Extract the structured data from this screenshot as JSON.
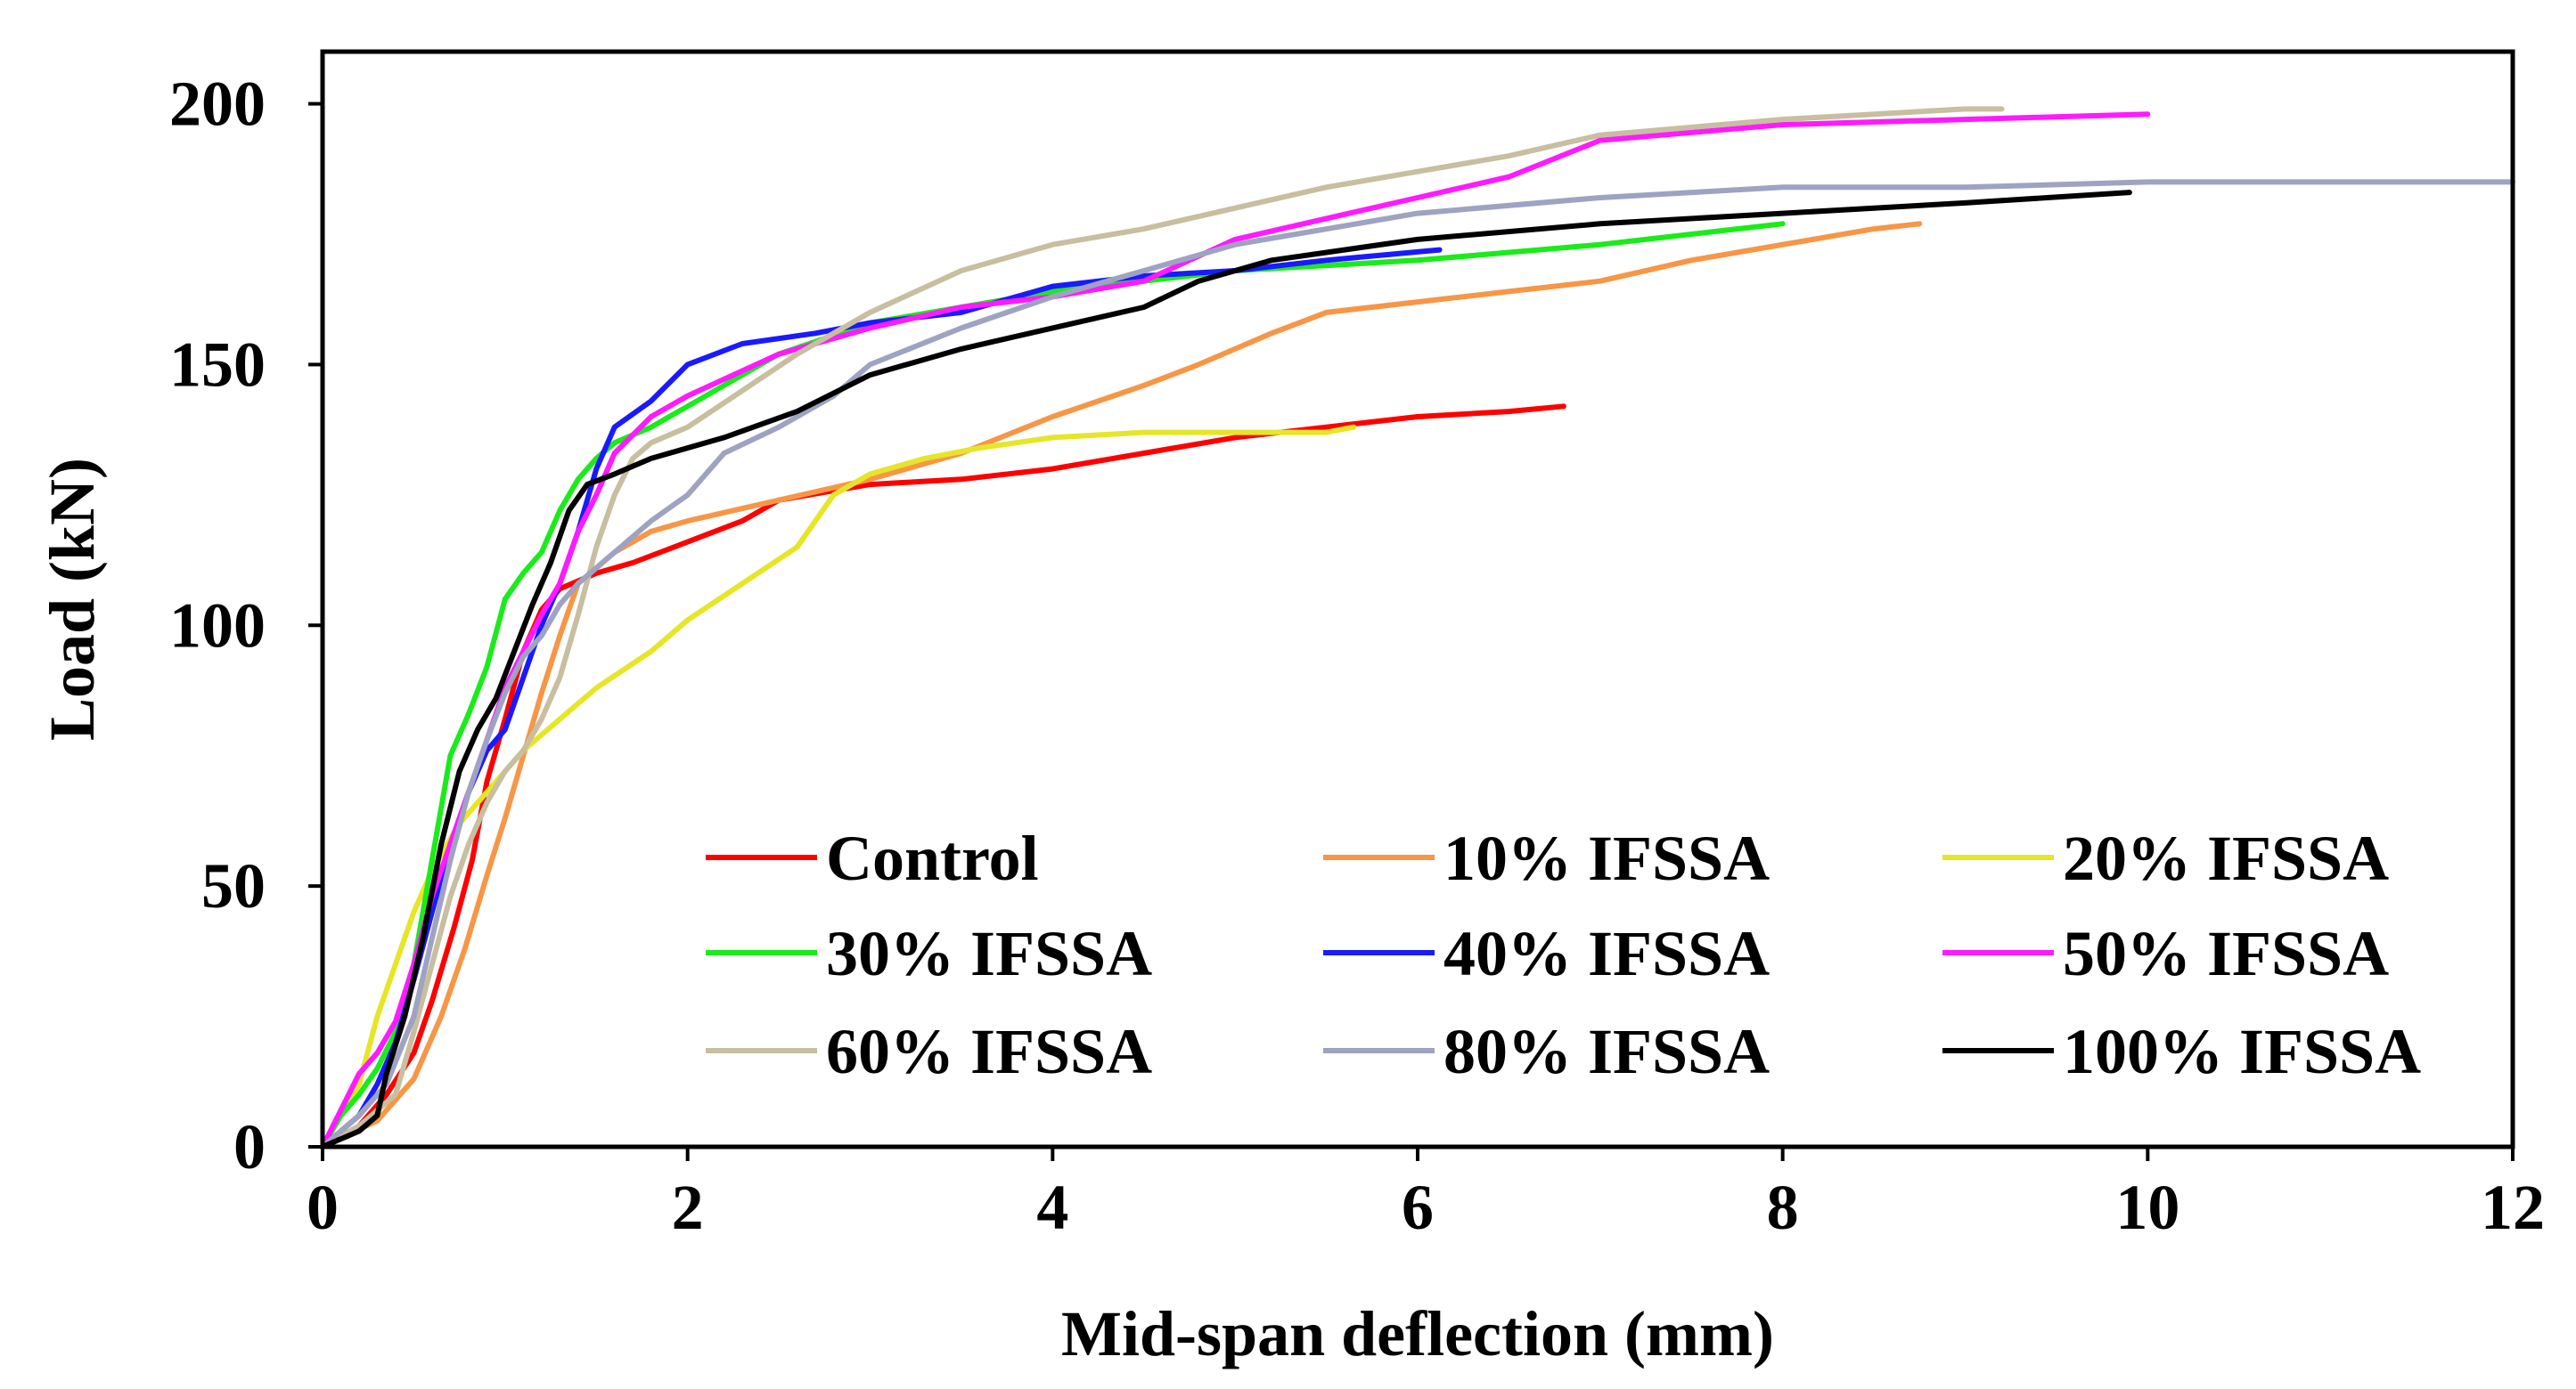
{
  "chart_data": {
    "type": "line",
    "title": "",
    "xlabel": "Mid-span deflection (mm)",
    "ylabel": "Load (kN)",
    "xlim": [
      0,
      12
    ],
    "ylim": [
      0,
      210
    ],
    "xticks": [
      0,
      2,
      4,
      6,
      8,
      10,
      12
    ],
    "yticks": [
      0,
      50,
      100,
      150,
      200
    ],
    "legend_position": "bottom-right-inside",
    "series": [
      {
        "name": "Control",
        "color": "#ff0000",
        "points": [
          [
            0,
            0
          ],
          [
            0.2,
            4
          ],
          [
            0.35,
            10
          ],
          [
            0.5,
            18
          ],
          [
            0.6,
            28
          ],
          [
            0.72,
            42
          ],
          [
            0.82,
            55
          ],
          [
            0.9,
            70
          ],
          [
            1.0,
            82
          ],
          [
            1.1,
            95
          ],
          [
            1.2,
            103
          ],
          [
            1.3,
            107
          ],
          [
            1.5,
            110
          ],
          [
            1.7,
            112
          ],
          [
            2.0,
            116
          ],
          [
            2.3,
            120
          ],
          [
            2.5,
            124
          ],
          [
            3.0,
            127
          ],
          [
            3.5,
            128
          ],
          [
            4.0,
            130
          ],
          [
            4.5,
            133
          ],
          [
            5.0,
            136
          ],
          [
            5.5,
            138
          ],
          [
            6.0,
            140
          ],
          [
            6.5,
            141
          ],
          [
            6.8,
            142
          ]
        ]
      },
      {
        "name": "10% IFSSA",
        "color": "#f79646",
        "points": [
          [
            0,
            0
          ],
          [
            0.3,
            5
          ],
          [
            0.5,
            13
          ],
          [
            0.65,
            25
          ],
          [
            0.78,
            38
          ],
          [
            0.9,
            52
          ],
          [
            1.0,
            63
          ],
          [
            1.1,
            75
          ],
          [
            1.2,
            87
          ],
          [
            1.3,
            98
          ],
          [
            1.4,
            108
          ],
          [
            1.6,
            114
          ],
          [
            1.8,
            118
          ],
          [
            2.0,
            120
          ],
          [
            2.5,
            124
          ],
          [
            3.0,
            128
          ],
          [
            3.5,
            133
          ],
          [
            4.0,
            140
          ],
          [
            4.5,
            146
          ],
          [
            4.8,
            150
          ],
          [
            5.2,
            156
          ],
          [
            5.5,
            160
          ],
          [
            6.0,
            162
          ],
          [
            6.5,
            164
          ],
          [
            7.0,
            166
          ],
          [
            7.5,
            170
          ],
          [
            8.0,
            173
          ],
          [
            8.5,
            176
          ],
          [
            8.75,
            177
          ]
        ]
      },
      {
        "name": "20% IFSSA",
        "color": "#e6e628",
        "points": [
          [
            0,
            0
          ],
          [
            0.2,
            12
          ],
          [
            0.3,
            25
          ],
          [
            0.4,
            35
          ],
          [
            0.5,
            45
          ],
          [
            0.6,
            53
          ],
          [
            0.75,
            62
          ],
          [
            0.9,
            68
          ],
          [
            1.1,
            76
          ],
          [
            1.3,
            82
          ],
          [
            1.5,
            88
          ],
          [
            1.8,
            95
          ],
          [
            2.0,
            101
          ],
          [
            2.3,
            108
          ],
          [
            2.6,
            115
          ],
          [
            2.8,
            125
          ],
          [
            3.0,
            129
          ],
          [
            3.3,
            132
          ],
          [
            3.6,
            134
          ],
          [
            4.0,
            136
          ],
          [
            4.5,
            137
          ],
          [
            5.0,
            137
          ],
          [
            5.5,
            137
          ],
          [
            5.65,
            138
          ]
        ]
      },
      {
        "name": "30% IFSSA",
        "color": "#1aeb1a",
        "points": [
          [
            0,
            0
          ],
          [
            0.1,
            6
          ],
          [
            0.2,
            10
          ],
          [
            0.3,
            15
          ],
          [
            0.4,
            22
          ],
          [
            0.5,
            35
          ],
          [
            0.6,
            55
          ],
          [
            0.7,
            75
          ],
          [
            0.8,
            83
          ],
          [
            0.9,
            92
          ],
          [
            1.0,
            105
          ],
          [
            1.1,
            110
          ],
          [
            1.2,
            114
          ],
          [
            1.3,
            122
          ],
          [
            1.4,
            128
          ],
          [
            1.5,
            132
          ],
          [
            1.6,
            135
          ],
          [
            1.8,
            138
          ],
          [
            2.0,
            142
          ],
          [
            2.5,
            152
          ],
          [
            3.0,
            158
          ],
          [
            3.5,
            161
          ],
          [
            4.0,
            164
          ],
          [
            5.0,
            168
          ],
          [
            6.0,
            170
          ],
          [
            7.0,
            173
          ],
          [
            8.0,
            177
          ]
        ]
      },
      {
        "name": "40% IFSSA",
        "color": "#1a1aff",
        "points": [
          [
            0,
            0
          ],
          [
            0.2,
            6
          ],
          [
            0.3,
            12
          ],
          [
            0.4,
            20
          ],
          [
            0.5,
            32
          ],
          [
            0.6,
            45
          ],
          [
            0.7,
            58
          ],
          [
            0.8,
            68
          ],
          [
            0.9,
            76
          ],
          [
            1.0,
            80
          ],
          [
            1.1,
            90
          ],
          [
            1.2,
            100
          ],
          [
            1.3,
            108
          ],
          [
            1.4,
            118
          ],
          [
            1.5,
            130
          ],
          [
            1.6,
            138
          ],
          [
            1.8,
            143
          ],
          [
            2.0,
            150
          ],
          [
            2.3,
            154
          ],
          [
            2.7,
            156
          ],
          [
            3.0,
            158
          ],
          [
            3.5,
            160
          ],
          [
            4.0,
            165
          ],
          [
            4.5,
            167
          ],
          [
            5.0,
            168
          ],
          [
            5.5,
            170
          ],
          [
            6.12,
            172
          ]
        ]
      },
      {
        "name": "50% IFSSA",
        "color": "#ff1aff",
        "points": [
          [
            0,
            0
          ],
          [
            0.2,
            14
          ],
          [
            0.3,
            18
          ],
          [
            0.4,
            24
          ],
          [
            0.5,
            35
          ],
          [
            0.6,
            48
          ],
          [
            0.7,
            58
          ],
          [
            0.8,
            68
          ],
          [
            0.9,
            78
          ],
          [
            1.0,
            88
          ],
          [
            1.1,
            95
          ],
          [
            1.2,
            102
          ],
          [
            1.3,
            108
          ],
          [
            1.4,
            118
          ],
          [
            1.5,
            125
          ],
          [
            1.6,
            133
          ],
          [
            1.8,
            140
          ],
          [
            2.0,
            144
          ],
          [
            2.5,
            152
          ],
          [
            3.0,
            157
          ],
          [
            3.5,
            161
          ],
          [
            4.0,
            163
          ],
          [
            4.5,
            166
          ],
          [
            5.0,
            174
          ],
          [
            5.5,
            178
          ],
          [
            6.0,
            182
          ],
          [
            6.5,
            186
          ],
          [
            7.0,
            193
          ],
          [
            8.0,
            196
          ],
          [
            9.0,
            197
          ],
          [
            10.0,
            198
          ]
        ]
      },
      {
        "name": "60% IFSSA",
        "color": "#c8bea0",
        "points": [
          [
            0,
            0
          ],
          [
            0.2,
            4
          ],
          [
            0.4,
            10
          ],
          [
            0.5,
            22
          ],
          [
            0.6,
            35
          ],
          [
            0.7,
            48
          ],
          [
            0.8,
            58
          ],
          [
            0.9,
            66
          ],
          [
            1.0,
            72
          ],
          [
            1.1,
            76
          ],
          [
            1.2,
            82
          ],
          [
            1.3,
            90
          ],
          [
            1.4,
            102
          ],
          [
            1.5,
            115
          ],
          [
            1.6,
            125
          ],
          [
            1.7,
            132
          ],
          [
            1.8,
            135
          ],
          [
            2.0,
            138
          ],
          [
            2.3,
            145
          ],
          [
            2.6,
            152
          ],
          [
            3.0,
            160
          ],
          [
            3.5,
            168
          ],
          [
            4.0,
            173
          ],
          [
            4.5,
            176
          ],
          [
            5.0,
            180
          ],
          [
            5.5,
            184
          ],
          [
            6.0,
            187
          ],
          [
            6.5,
            190
          ],
          [
            7.0,
            194
          ],
          [
            8.0,
            197
          ],
          [
            9.0,
            199
          ],
          [
            9.2,
            199
          ]
        ]
      },
      {
        "name": "80% IFSSA",
        "color": "#9ea3c2",
        "points": [
          [
            0,
            0
          ],
          [
            0.2,
            6
          ],
          [
            0.35,
            12
          ],
          [
            0.5,
            25
          ],
          [
            0.6,
            40
          ],
          [
            0.7,
            55
          ],
          [
            0.8,
            68
          ],
          [
            0.9,
            78
          ],
          [
            1.0,
            87
          ],
          [
            1.1,
            94
          ],
          [
            1.2,
            98
          ],
          [
            1.3,
            104
          ],
          [
            1.4,
            108
          ],
          [
            1.6,
            114
          ],
          [
            1.8,
            120
          ],
          [
            2.0,
            125
          ],
          [
            2.2,
            133
          ],
          [
            2.5,
            138
          ],
          [
            2.8,
            144
          ],
          [
            3.0,
            150
          ],
          [
            3.5,
            157
          ],
          [
            4.0,
            163
          ],
          [
            4.5,
            168
          ],
          [
            5.0,
            173
          ],
          [
            6.0,
            179
          ],
          [
            7.0,
            182
          ],
          [
            8.0,
            184
          ],
          [
            9.0,
            184
          ],
          [
            10.0,
            185
          ],
          [
            11.0,
            185
          ],
          [
            12.0,
            185
          ]
        ]
      },
      {
        "name": "100% IFSSA",
        "color": "#000000",
        "points": [
          [
            0,
            0
          ],
          [
            0.2,
            3
          ],
          [
            0.3,
            6
          ],
          [
            0.35,
            14
          ],
          [
            0.45,
            25
          ],
          [
            0.55,
            40
          ],
          [
            0.65,
            58
          ],
          [
            0.75,
            72
          ],
          [
            0.85,
            80
          ],
          [
            0.95,
            86
          ],
          [
            1.05,
            95
          ],
          [
            1.15,
            104
          ],
          [
            1.25,
            112
          ],
          [
            1.35,
            122
          ],
          [
            1.45,
            127
          ],
          [
            1.6,
            129
          ],
          [
            1.8,
            132
          ],
          [
            2.2,
            136
          ],
          [
            2.6,
            141
          ],
          [
            3.0,
            148
          ],
          [
            3.5,
            153
          ],
          [
            4.0,
            157
          ],
          [
            4.5,
            161
          ],
          [
            4.8,
            166
          ],
          [
            5.2,
            170
          ],
          [
            6.0,
            174
          ],
          [
            7.0,
            177
          ],
          [
            8.0,
            179
          ],
          [
            9.0,
            181
          ],
          [
            9.9,
            183
          ]
        ]
      }
    ]
  }
}
